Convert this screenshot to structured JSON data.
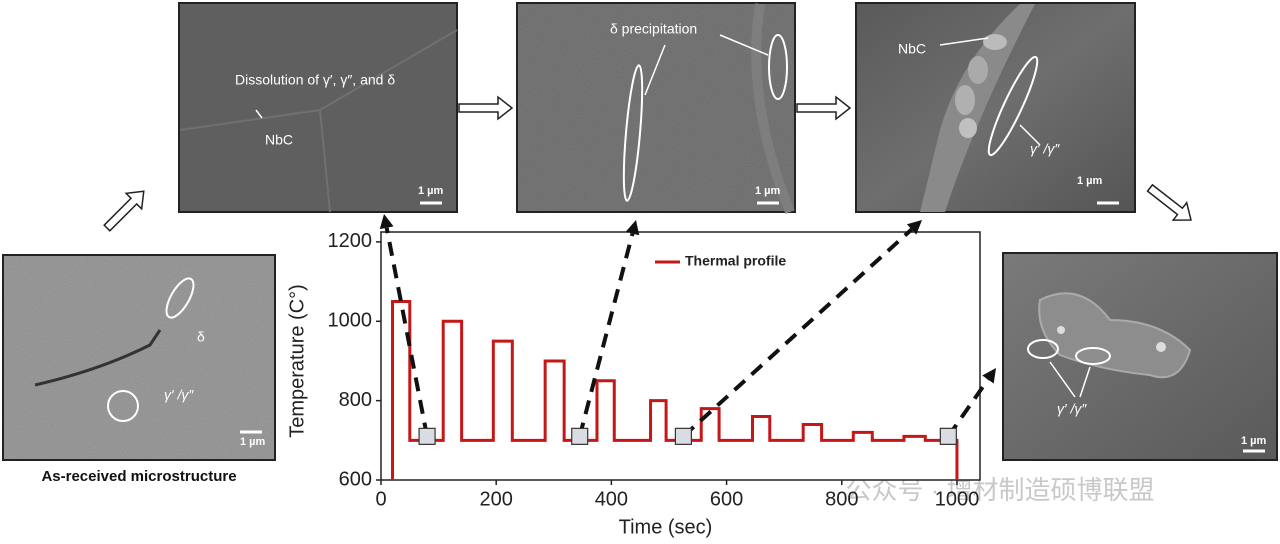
{
  "chart_data": {
    "type": "line",
    "xlabel": "Time (sec)",
    "ylabel": "Temperature (C°)",
    "x": [
      20,
      20,
      50,
      50,
      108,
      108,
      140,
      140,
      195,
      195,
      228,
      228,
      285,
      285,
      318,
      318,
      375,
      375,
      405,
      405,
      468,
      468,
      495,
      495,
      556,
      556,
      587,
      587,
      645,
      645,
      675,
      675,
      733,
      733,
      765,
      765,
      820,
      820,
      853,
      853,
      908,
      908,
      945,
      945,
      1000,
      1000
    ],
    "series": [
      {
        "name": "Thermal profile",
        "color": "#c41818",
        "values": [
          600,
          1050,
          1050,
          700,
          700,
          1000,
          1000,
          700,
          700,
          950,
          950,
          700,
          700,
          900,
          900,
          700,
          700,
          850,
          850,
          700,
          700,
          800,
          800,
          700,
          700,
          780,
          780,
          700,
          700,
          760,
          760,
          700,
          700,
          740,
          740,
          700,
          700,
          720,
          720,
          700,
          700,
          710,
          710,
          700,
          700,
          600
        ]
      }
    ],
    "markers": {
      "x": [
        80,
        345,
        525,
        985
      ],
      "values": [
        710,
        710,
        710,
        710
      ]
    },
    "xlim": [
      0,
      1040
    ],
    "ylim": [
      600,
      1225
    ],
    "xticks": [
      0,
      200,
      400,
      600,
      800,
      1000
    ],
    "yticks": [
      600,
      800,
      1000,
      1200
    ],
    "legend": "upper right"
  },
  "panels": [
    {
      "caption": "As-received microstructure",
      "labels": [
        "δ",
        "γ′ /γ″"
      ],
      "scale": "1 µm"
    },
    {
      "labels": [
        "Dissolution of γ′, γ″, and δ",
        "NbC"
      ],
      "scale": "1 µm"
    },
    {
      "labels": [
        "δ precipitation"
      ],
      "scale": "1 µm"
    },
    {
      "labels": [
        "NbC",
        "γ′ /γ″"
      ],
      "scale": "1 µm"
    },
    {
      "labels": [
        "γ′ /γ″"
      ],
      "scale": "1 µm"
    }
  ],
  "watermark": "公众号 · 增材制造硕博联盟"
}
